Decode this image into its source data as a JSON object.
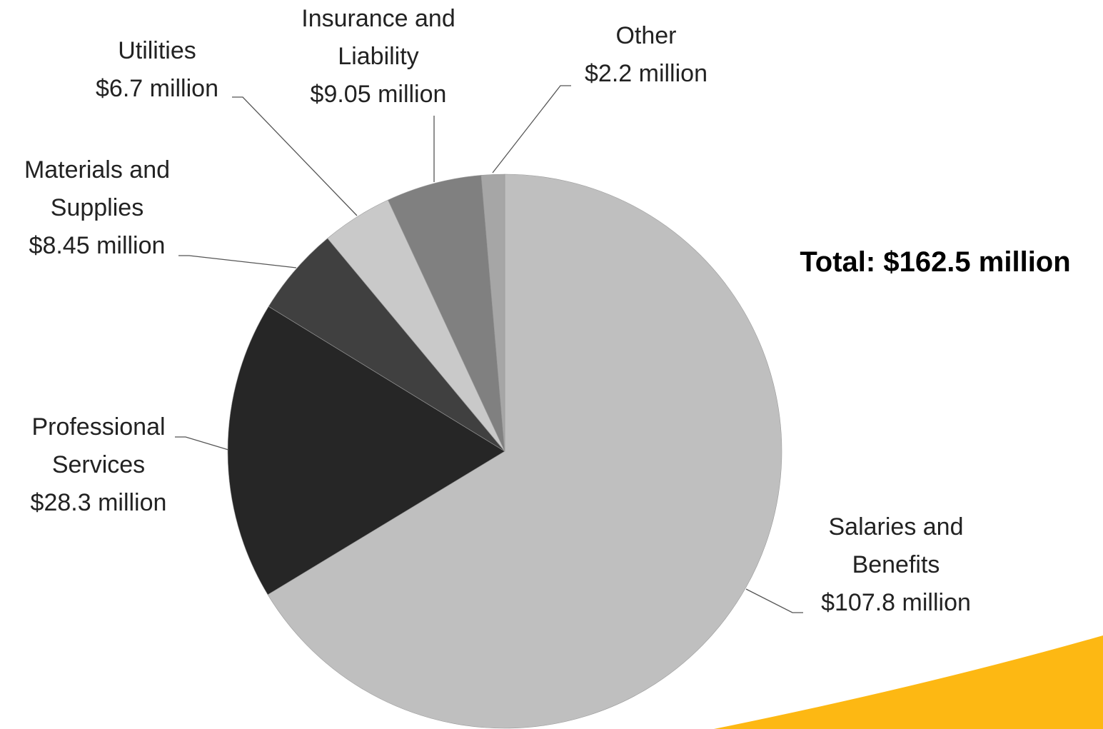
{
  "chart_data": {
    "type": "pie",
    "annotation": "Total: $162.5 million",
    "categories": [
      "Salaries and Benefits",
      "Professional Services",
      "Materials and Supplies",
      "Utilities",
      "Insurance and Liability",
      "Other"
    ],
    "values": [
      107.8,
      28.3,
      8.45,
      6.7,
      9.05,
      2.2
    ],
    "value_labels": [
      "$107.8 million",
      "$28.3 million",
      "$8.45 million",
      "$6.7 million",
      "$9.05 million",
      "$2.2 million"
    ],
    "colors": [
      "#bfbfbf",
      "#262626",
      "#404040",
      "#c9c9c9",
      "#808080",
      "#a6a6a6"
    ]
  }
}
